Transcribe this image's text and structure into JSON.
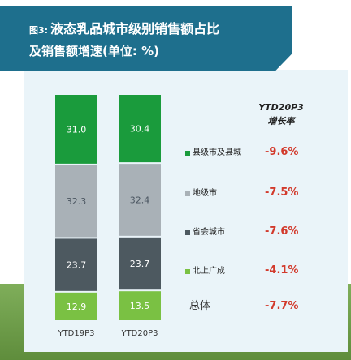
{
  "title": {
    "prefix": "图3:",
    "line1": "液态乳品城市级别销售额占比",
    "line2": "及销售额增速(单位: %)"
  },
  "growth_header": {
    "line1": "YTD20P3",
    "line2": "增长率"
  },
  "total_label": "总体",
  "total_growth": "-7.7%",
  "legend": [
    {
      "label": "县级市及县城",
      "color": "#1a9b3c",
      "growth": "-9.6%"
    },
    {
      "label": "地级市",
      "color": "#a9b1b7",
      "growth": "-7.5%"
    },
    {
      "label": "省会城市",
      "color": "#4d5960",
      "growth": "-7.6%"
    },
    {
      "label": "北上广成",
      "color": "#7ac143",
      "growth": "-4.1%"
    }
  ],
  "colors": {
    "banner": "#1e6f8d",
    "card": "#eaf4f9",
    "growth_text": "#d23a2c"
  },
  "chart_data": {
    "type": "bar",
    "stacked": true,
    "normalized_percent": true,
    "categories": [
      "YTD19P3",
      "YTD20P3"
    ],
    "series": [
      {
        "name": "北上广成",
        "values": [
          12.9,
          13.5
        ],
        "color": "#7ac143"
      },
      {
        "name": "省会城市",
        "values": [
          23.7,
          23.7
        ],
        "color": "#4d5960"
      },
      {
        "name": "地级市",
        "values": [
          32.3,
          32.4
        ],
        "color": "#a9b1b7"
      },
      {
        "name": "县级市及县城",
        "values": [
          31.0,
          30.4
        ],
        "color": "#1a9b3c"
      }
    ],
    "ylim": [
      0,
      100
    ],
    "data_labels": true,
    "legend_placement": "right"
  }
}
